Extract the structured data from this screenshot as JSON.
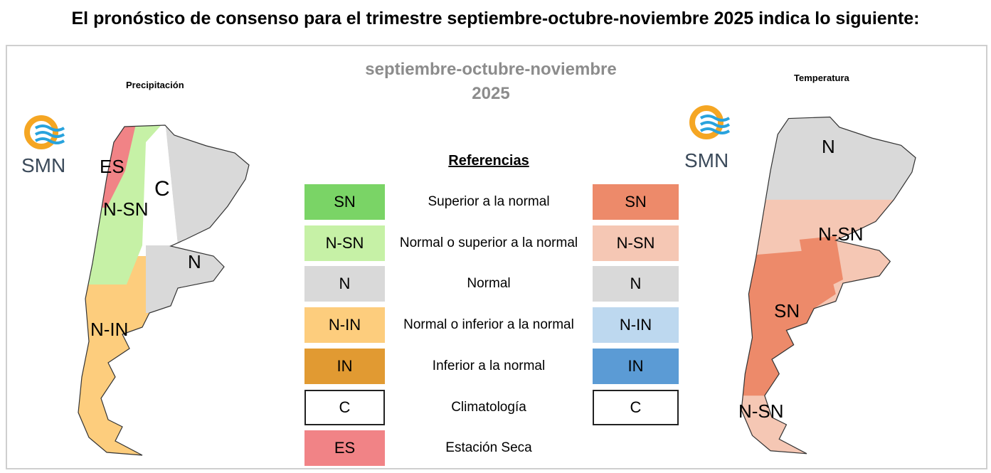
{
  "header": {
    "title": "El pronóstico de consenso para el trimestre septiembre-octubre-noviembre 2025 indica lo siguiente:"
  },
  "center_title": {
    "line1": "septiembre-octubre-noviembre",
    "line2": "2025"
  },
  "precipitation_map": {
    "title": "Precipitación",
    "logo": "SMN",
    "regions": [
      "ES",
      "C",
      "N-SN",
      "N",
      "N-IN"
    ]
  },
  "temperature_map": {
    "title": "Temperatura",
    "logo": "SMN",
    "regions": [
      "N",
      "N-SN",
      "SN",
      "N-SN"
    ]
  },
  "legend": {
    "title": "Referencias",
    "rows": [
      {
        "precipitation": "SN",
        "label": "Superior a la normal",
        "temperature": "SN"
      },
      {
        "precipitation": "N-SN",
        "label": "Normal o superior a la normal",
        "temperature": "N-SN"
      },
      {
        "precipitation": "N",
        "label": "Normal",
        "temperature": "N"
      },
      {
        "precipitation": "N-IN",
        "label": "Normal o inferior a la normal",
        "temperature": "N-IN"
      },
      {
        "precipitation": "IN",
        "label": "Inferior a la normal",
        "temperature": "IN"
      },
      {
        "precipitation": "C",
        "label": "Climatología",
        "temperature": "C"
      },
      {
        "precipitation": "ES",
        "label": "Estación Seca"
      }
    ]
  }
}
